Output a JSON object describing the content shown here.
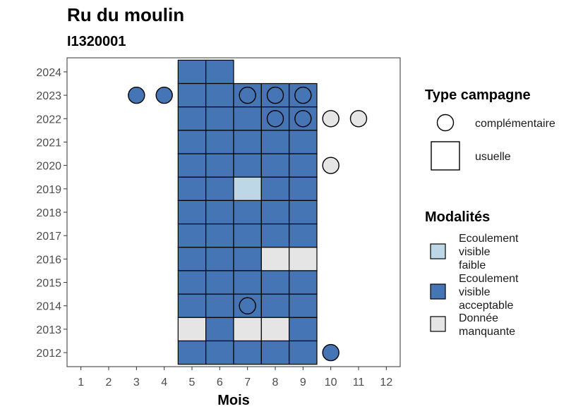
{
  "colors": {
    "acceptable": "#4575b4",
    "faible": "#bdd7e7",
    "manquante": "#e5e5e5",
    "outline": "#000000",
    "panel_border": "#333333",
    "tick_text": "#4d4d4d"
  },
  "chart_data": {
    "type": "heatmap",
    "title": "Ru du moulin",
    "subtitle": "I1320001",
    "xlabel": "Mois",
    "ylabel": "",
    "x_ticks": [
      1,
      2,
      3,
      4,
      5,
      6,
      7,
      8,
      9,
      10,
      11,
      12
    ],
    "y_ticks": [
      2012,
      2013,
      2014,
      2015,
      2016,
      2017,
      2018,
      2019,
      2020,
      2021,
      2022,
      2023,
      2024
    ],
    "xlim": [
      0.5,
      12.5
    ],
    "ylim": [
      2011.4,
      2024.6
    ],
    "grid": false,
    "legend_position": "right",
    "legends": [
      {
        "title": "Type campagne",
        "kind": "shape",
        "entries": [
          {
            "key": "complementaire",
            "label": "complémentaire",
            "shape": "circle"
          },
          {
            "key": "usuelle",
            "label": "usuelle",
            "shape": "square"
          }
        ]
      },
      {
        "title": "Modalités",
        "kind": "fill",
        "entries": [
          {
            "key": "faible",
            "label_lines": [
              "Ecoulement",
              "visible",
              "faible"
            ]
          },
          {
            "key": "acceptable",
            "label_lines": [
              "Ecoulement",
              "visible",
              "acceptable"
            ]
          },
          {
            "key": "manquante",
            "label_lines": [
              "Donnée",
              "manquante"
            ]
          }
        ]
      }
    ],
    "usuelle": [
      {
        "year": 2024,
        "month": 5,
        "modalite": "acceptable"
      },
      {
        "year": 2024,
        "month": 6,
        "modalite": "acceptable"
      },
      {
        "year": 2023,
        "month": 5,
        "modalite": "acceptable"
      },
      {
        "year": 2023,
        "month": 6,
        "modalite": "acceptable"
      },
      {
        "year": 2023,
        "month": 7,
        "modalite": "acceptable"
      },
      {
        "year": 2023,
        "month": 8,
        "modalite": "acceptable"
      },
      {
        "year": 2023,
        "month": 9,
        "modalite": "acceptable"
      },
      {
        "year": 2022,
        "month": 5,
        "modalite": "acceptable"
      },
      {
        "year": 2022,
        "month": 6,
        "modalite": "acceptable"
      },
      {
        "year": 2022,
        "month": 7,
        "modalite": "acceptable"
      },
      {
        "year": 2022,
        "month": 8,
        "modalite": "acceptable"
      },
      {
        "year": 2022,
        "month": 9,
        "modalite": "acceptable"
      },
      {
        "year": 2021,
        "month": 5,
        "modalite": "acceptable"
      },
      {
        "year": 2021,
        "month": 6,
        "modalite": "acceptable"
      },
      {
        "year": 2021,
        "month": 7,
        "modalite": "acceptable"
      },
      {
        "year": 2021,
        "month": 8,
        "modalite": "acceptable"
      },
      {
        "year": 2021,
        "month": 9,
        "modalite": "acceptable"
      },
      {
        "year": 2020,
        "month": 5,
        "modalite": "acceptable"
      },
      {
        "year": 2020,
        "month": 6,
        "modalite": "acceptable"
      },
      {
        "year": 2020,
        "month": 7,
        "modalite": "acceptable"
      },
      {
        "year": 2020,
        "month": 8,
        "modalite": "acceptable"
      },
      {
        "year": 2020,
        "month": 9,
        "modalite": "acceptable"
      },
      {
        "year": 2019,
        "month": 5,
        "modalite": "acceptable"
      },
      {
        "year": 2019,
        "month": 6,
        "modalite": "acceptable"
      },
      {
        "year": 2019,
        "month": 7,
        "modalite": "faible"
      },
      {
        "year": 2019,
        "month": 8,
        "modalite": "acceptable"
      },
      {
        "year": 2019,
        "month": 9,
        "modalite": "acceptable"
      },
      {
        "year": 2018,
        "month": 5,
        "modalite": "acceptable"
      },
      {
        "year": 2018,
        "month": 6,
        "modalite": "acceptable"
      },
      {
        "year": 2018,
        "month": 7,
        "modalite": "acceptable"
      },
      {
        "year": 2018,
        "month": 8,
        "modalite": "acceptable"
      },
      {
        "year": 2018,
        "month": 9,
        "modalite": "acceptable"
      },
      {
        "year": 2017,
        "month": 5,
        "modalite": "acceptable"
      },
      {
        "year": 2017,
        "month": 6,
        "modalite": "acceptable"
      },
      {
        "year": 2017,
        "month": 7,
        "modalite": "acceptable"
      },
      {
        "year": 2017,
        "month": 8,
        "modalite": "acceptable"
      },
      {
        "year": 2017,
        "month": 9,
        "modalite": "acceptable"
      },
      {
        "year": 2016,
        "month": 5,
        "modalite": "acceptable"
      },
      {
        "year": 2016,
        "month": 6,
        "modalite": "acceptable"
      },
      {
        "year": 2016,
        "month": 7,
        "modalite": "acceptable"
      },
      {
        "year": 2016,
        "month": 8,
        "modalite": "manquante"
      },
      {
        "year": 2016,
        "month": 9,
        "modalite": "manquante"
      },
      {
        "year": 2015,
        "month": 5,
        "modalite": "acceptable"
      },
      {
        "year": 2015,
        "month": 6,
        "modalite": "acceptable"
      },
      {
        "year": 2015,
        "month": 7,
        "modalite": "acceptable"
      },
      {
        "year": 2015,
        "month": 8,
        "modalite": "acceptable"
      },
      {
        "year": 2015,
        "month": 9,
        "modalite": "acceptable"
      },
      {
        "year": 2014,
        "month": 5,
        "modalite": "acceptable"
      },
      {
        "year": 2014,
        "month": 6,
        "modalite": "acceptable"
      },
      {
        "year": 2014,
        "month": 7,
        "modalite": "acceptable"
      },
      {
        "year": 2014,
        "month": 8,
        "modalite": "acceptable"
      },
      {
        "year": 2014,
        "month": 9,
        "modalite": "acceptable"
      },
      {
        "year": 2013,
        "month": 5,
        "modalite": "manquante"
      },
      {
        "year": 2013,
        "month": 6,
        "modalite": "acceptable"
      },
      {
        "year": 2013,
        "month": 7,
        "modalite": "manquante"
      },
      {
        "year": 2013,
        "month": 8,
        "modalite": "manquante"
      },
      {
        "year": 2013,
        "month": 9,
        "modalite": "acceptable"
      },
      {
        "year": 2012,
        "month": 5,
        "modalite": "acceptable"
      },
      {
        "year": 2012,
        "month": 6,
        "modalite": "acceptable"
      },
      {
        "year": 2012,
        "month": 7,
        "modalite": "acceptable"
      },
      {
        "year": 2012,
        "month": 8,
        "modalite": "acceptable"
      },
      {
        "year": 2012,
        "month": 9,
        "modalite": "acceptable"
      }
    ],
    "complementaire": [
      {
        "year": 2023,
        "month": 3,
        "modalite": "acceptable"
      },
      {
        "year": 2023,
        "month": 4,
        "modalite": "acceptable"
      },
      {
        "year": 2023,
        "month": 7,
        "modalite": "acceptable"
      },
      {
        "year": 2023,
        "month": 8,
        "modalite": "acceptable"
      },
      {
        "year": 2023,
        "month": 9,
        "modalite": "acceptable"
      },
      {
        "year": 2022,
        "month": 8,
        "modalite": "acceptable"
      },
      {
        "year": 2022,
        "month": 9,
        "modalite": "acceptable"
      },
      {
        "year": 2022,
        "month": 10,
        "modalite": "manquante"
      },
      {
        "year": 2022,
        "month": 11,
        "modalite": "manquante"
      },
      {
        "year": 2020,
        "month": 10,
        "modalite": "manquante"
      },
      {
        "year": 2014,
        "month": 7,
        "modalite": "acceptable"
      },
      {
        "year": 2012,
        "month": 10,
        "modalite": "acceptable"
      }
    ]
  }
}
